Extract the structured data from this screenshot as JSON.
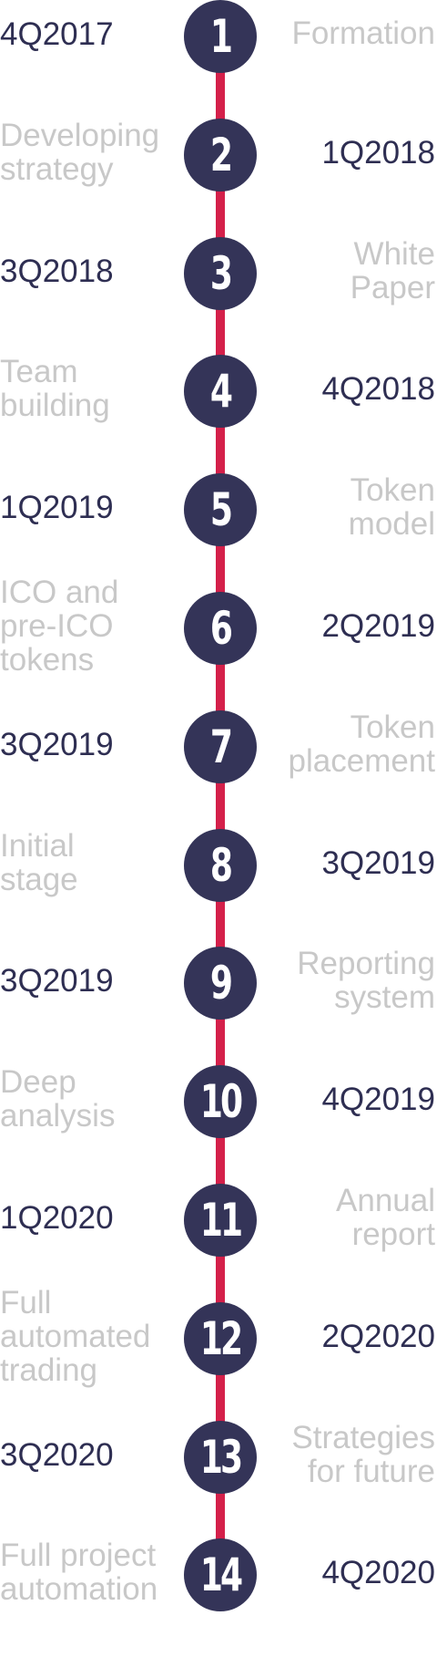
{
  "colors": {
    "node": "#343458",
    "line": "#d4204a",
    "date_text": "#2e2e52",
    "label_text": "#c8c8c8"
  },
  "milestones": [
    {
      "number": "1",
      "date": "4Q2017",
      "label": "Formation",
      "date_side": "left"
    },
    {
      "number": "2",
      "date": "1Q2018",
      "label": "Developing\nstrategy",
      "date_side": "right"
    },
    {
      "number": "3",
      "date": "3Q2018",
      "label": "White\nPaper",
      "date_side": "left"
    },
    {
      "number": "4",
      "date": "4Q2018",
      "label": "Team\nbuilding",
      "date_side": "right"
    },
    {
      "number": "5",
      "date": "1Q2019",
      "label": "Token\nmodel",
      "date_side": "left"
    },
    {
      "number": "6",
      "date": "2Q2019",
      "label": "ICO and\npre-ICO\ntokens",
      "date_side": "right"
    },
    {
      "number": "7",
      "date": "3Q2019",
      "label": "Token\nplacement",
      "date_side": "left"
    },
    {
      "number": "8",
      "date": "3Q2019",
      "label": "Initial\nstage",
      "date_side": "right"
    },
    {
      "number": "9",
      "date": "3Q2019",
      "label": "Reporting\nsystem",
      "date_side": "left"
    },
    {
      "number": "10",
      "date": "4Q2019",
      "label": "Deep\nanalysis",
      "date_side": "right"
    },
    {
      "number": "11",
      "date": "1Q2020",
      "label": "Annual\nreport",
      "date_side": "left"
    },
    {
      "number": "12",
      "date": "2Q2020",
      "label": "Full\nautomated\ntrading",
      "date_side": "right"
    },
    {
      "number": "13",
      "date": "3Q2020",
      "label": "Strategies\nfor future",
      "date_side": "left"
    },
    {
      "number": "14",
      "date": "4Q2020",
      "label": "Full project\nautomation",
      "date_side": "right"
    }
  ]
}
